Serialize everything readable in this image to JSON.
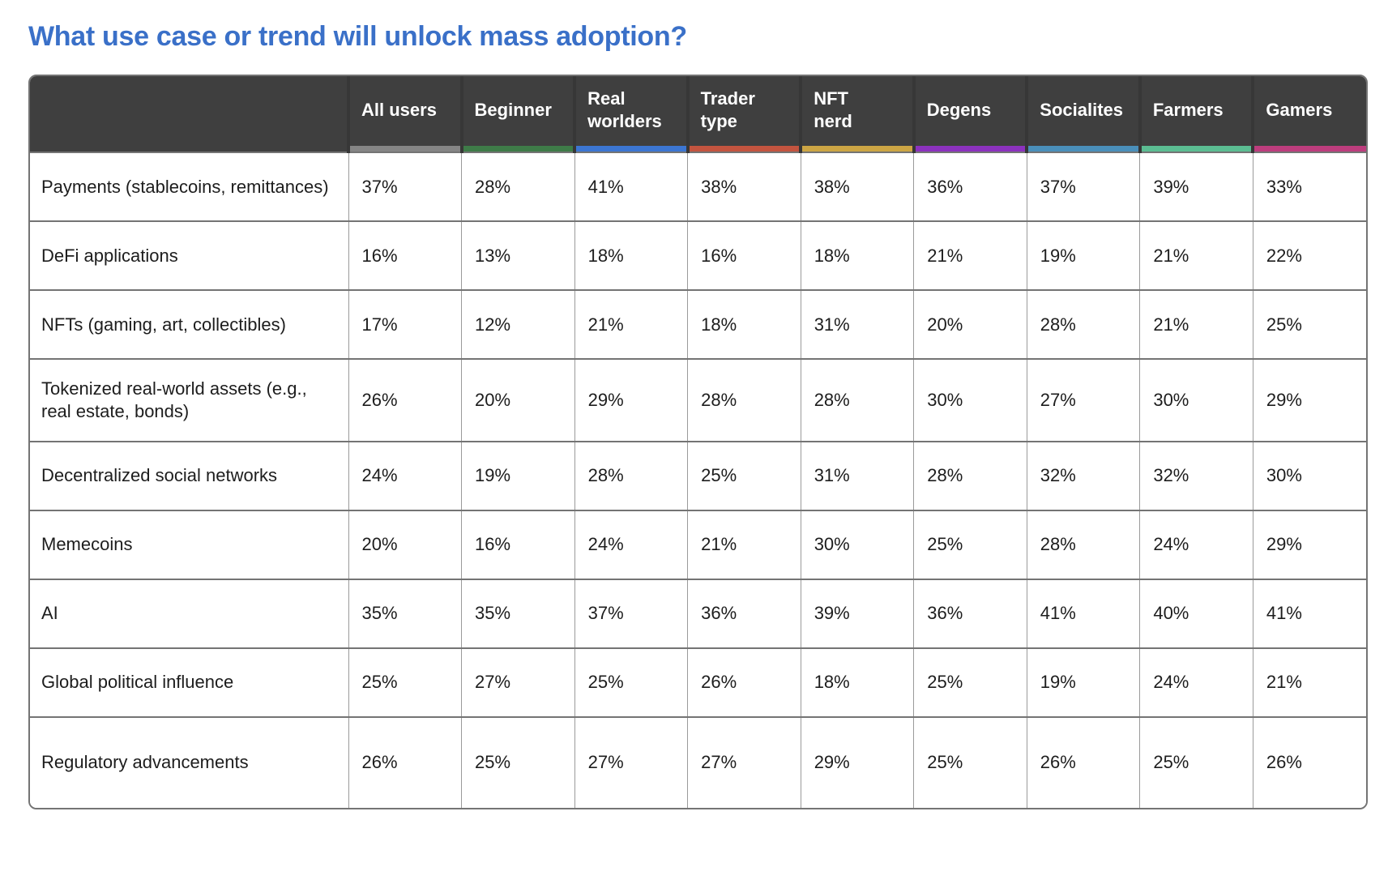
{
  "page": {
    "title": "What use case or trend will unlock mass adoption?",
    "title_color": "#3a70c8",
    "header_bg": "#3f3f3f"
  },
  "chart_data": {
    "type": "table",
    "title": "What use case or trend will unlock mass adoption?",
    "columns": [
      {
        "label": "All users",
        "color": "#858585"
      },
      {
        "label": "Beginner",
        "color": "#3e7b48"
      },
      {
        "label": "Real\nworlders",
        "color": "#3c76d2"
      },
      {
        "label": "Trader\ntype",
        "color": "#c3543f"
      },
      {
        "label": "NFT\nnerd",
        "color": "#cca544"
      },
      {
        "label": "Degens",
        "color": "#8c32be"
      },
      {
        "label": "Socialites",
        "color": "#4a8fba"
      },
      {
        "label": "Farmers",
        "color": "#5bbd92"
      },
      {
        "label": "Gamers",
        "color": "#bd3d7d"
      }
    ],
    "rows": [
      {
        "label": "Payments (stablecoins, remittances)",
        "values": [
          "37%",
          "28%",
          "41%",
          "38%",
          "38%",
          "36%",
          "37%",
          "39%",
          "33%"
        ]
      },
      {
        "label": "DeFi applications",
        "values": [
          "16%",
          "13%",
          "18%",
          "16%",
          "18%",
          "21%",
          "19%",
          "21%",
          "22%"
        ]
      },
      {
        "label": "NFTs (gaming, art, collectibles)",
        "values": [
          "17%",
          "12%",
          "21%",
          "18%",
          "31%",
          "20%",
          "28%",
          "21%",
          "25%"
        ]
      },
      {
        "label": "Tokenized real-world assets (e.g., real estate, bonds)",
        "values": [
          "26%",
          "20%",
          "29%",
          "28%",
          "28%",
          "30%",
          "27%",
          "30%",
          "29%"
        ]
      },
      {
        "label": "Decentralized social networks",
        "values": [
          "24%",
          "19%",
          "28%",
          "25%",
          "31%",
          "28%",
          "32%",
          "32%",
          "30%"
        ]
      },
      {
        "label": "Memecoins",
        "values": [
          "20%",
          "16%",
          "24%",
          "21%",
          "30%",
          "25%",
          "28%",
          "24%",
          "29%"
        ]
      },
      {
        "label": "AI",
        "values": [
          "35%",
          "35%",
          "37%",
          "36%",
          "39%",
          "36%",
          "41%",
          "40%",
          "41%"
        ]
      },
      {
        "label": "Global political influence",
        "values": [
          "25%",
          "27%",
          "25%",
          "26%",
          "18%",
          "25%",
          "19%",
          "24%",
          "21%"
        ]
      },
      {
        "label": "Regulatory advancements",
        "values": [
          "26%",
          "25%",
          "27%",
          "27%",
          "29%",
          "25%",
          "26%",
          "25%",
          "26%"
        ]
      }
    ]
  }
}
